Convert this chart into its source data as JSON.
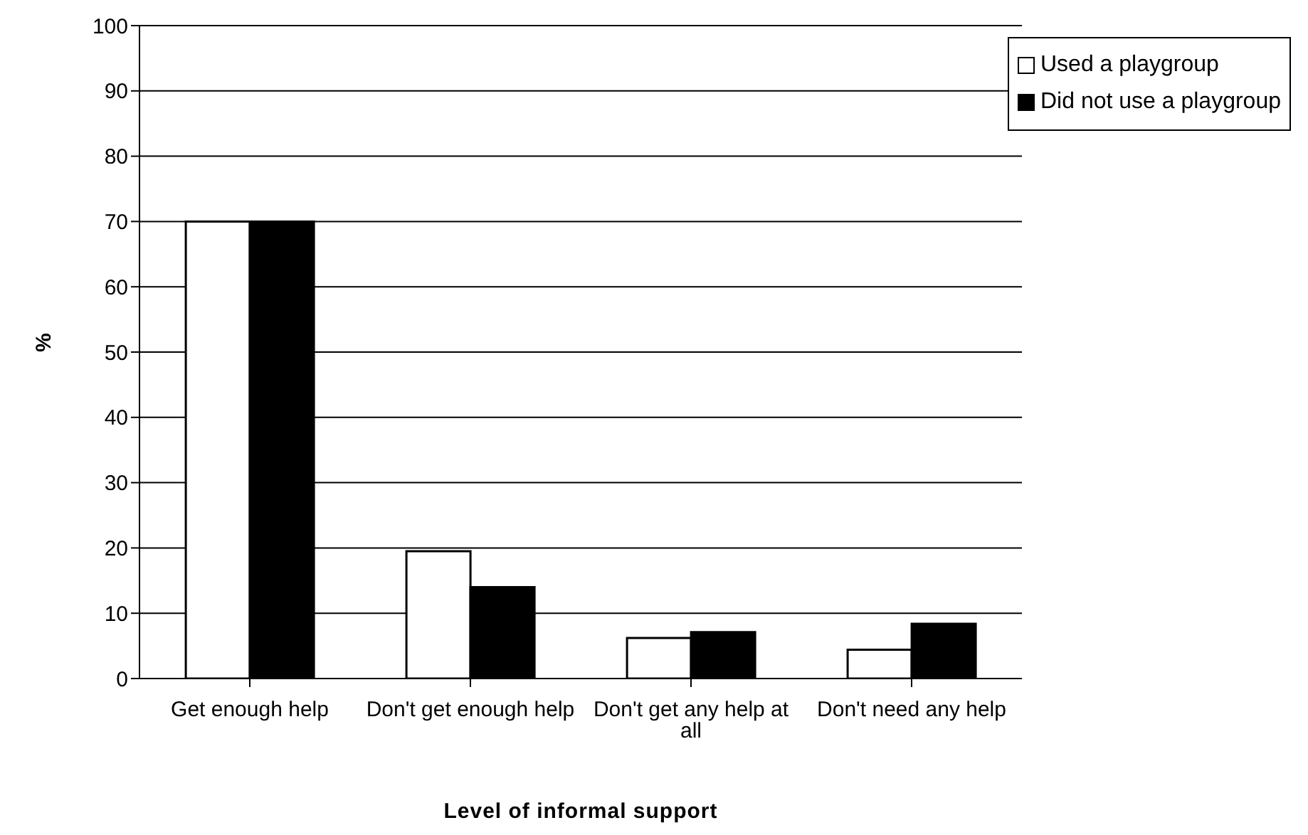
{
  "chart_data": {
    "type": "bar",
    "xlabel": "Level of informal support",
    "ylabel": "%",
    "categories": [
      "Get enough help",
      "Don't get enough help",
      "Don't get any help at all",
      "Don't need any help"
    ],
    "series": [
      {
        "name": "Used a playgroup",
        "color": "#ffffff",
        "values": [
          70,
          19.5,
          6.2,
          4.4
        ]
      },
      {
        "name": "Did not use a playgroup",
        "color": "#000000",
        "values": [
          70,
          14,
          7.1,
          8.4
        ]
      }
    ],
    "ylim": [
      0,
      100
    ],
    "yticks": [
      0,
      10,
      20,
      30,
      40,
      50,
      60,
      70,
      80,
      90,
      100
    ],
    "grid": "y",
    "legend": "top right"
  }
}
